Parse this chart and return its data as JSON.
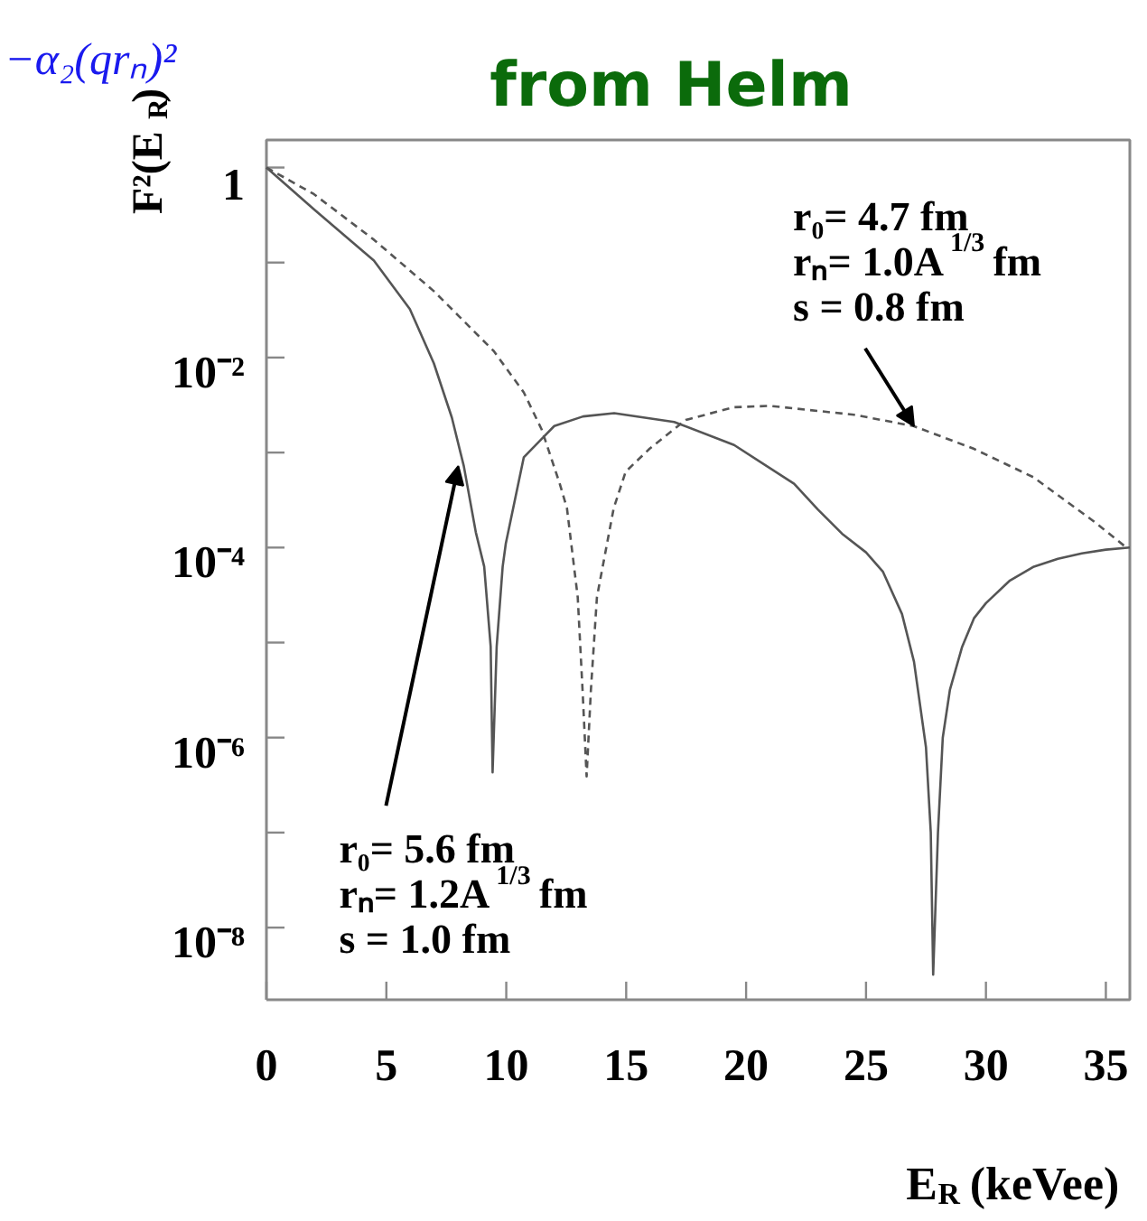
{
  "chart_data": {
    "type": "line",
    "title": "from Helm",
    "xlabel": "E$_{R}$ (keVee)",
    "ylabel": "F²(E$_{R}$)",
    "log": "y",
    "xlim": [
      0,
      36
    ],
    "xticks": [
      0,
      5,
      10,
      15,
      20,
      25,
      30,
      35
    ],
    "ylim": [
      1.74e-09,
      1.95
    ],
    "yticks": [
      {
        "value": 1,
        "label": "1"
      },
      {
        "value": 0.1,
        "label": null
      },
      {
        "value": 0.01,
        "label": "10⁻²"
      },
      {
        "value": 0.001,
        "label": null
      },
      {
        "value": 0.0001,
        "label": "10⁻⁴"
      },
      {
        "value": 1e-05,
        "label": null
      },
      {
        "value": 1e-06,
        "label": "10⁻⁶"
      },
      {
        "value": 1e-07,
        "label": null
      },
      {
        "value": 1e-08,
        "label": "10⁻⁸"
      }
    ],
    "grid": false,
    "series": [
      {
        "color": "#555555",
        "line_style": "solid",
        "x": [
          0,
          1.98,
          4.48,
          5.98,
          6.98,
          7.73,
          8.23,
          8.73,
          9.08,
          9.35,
          9.43,
          9.6,
          9.85,
          9.98,
          10.73,
          11.6,
          12.0,
          13.2,
          14.5,
          17,
          19.5,
          22,
          23,
          24,
          25,
          25.7,
          26.5,
          27,
          27.5,
          27.7,
          27.8,
          28.0,
          28.2,
          28.5,
          29,
          29.5,
          30,
          31,
          32,
          33,
          34,
          35,
          36
        ],
        "values": [
          1,
          0.363,
          0.105,
          0.0324,
          0.0087,
          0.00234,
          0.00072,
          0.000145,
          6.3e-05,
          9.1e-06,
          4.3e-07,
          9.1e-06,
          6.3e-05,
          0.00011,
          0.00089,
          0.0015,
          0.0019,
          0.0024,
          0.0026,
          0.0021,
          0.0012,
          0.00047,
          0.00025,
          0.00014,
          8.9e-05,
          5.6e-05,
          2e-05,
          6.3e-06,
          7.9e-07,
          1e-07,
          3.2e-09,
          1e-07,
          1e-06,
          3.2e-06,
          8.9e-06,
          1.8e-05,
          2.6e-05,
          4.5e-05,
          6.3e-05,
          7.6e-05,
          8.7e-05,
          9.5e-05,
          0.0001
        ]
      },
      {
        "color": "#555555",
        "line_style": "dashed",
        "x": [
          0,
          1.98,
          4.48,
          6.98,
          9.48,
          10.73,
          11.48,
          12.23,
          12.53,
          12.98,
          13.18,
          13.35,
          13.53,
          13.78,
          14.48,
          14.98,
          15.98,
          17.48,
          19.48,
          21,
          24.5,
          26.98,
          29.48,
          31.98,
          34.48,
          35.9
        ],
        "values": [
          1,
          0.525,
          0.174,
          0.05,
          0.0117,
          0.0043,
          0.00174,
          0.00047,
          0.00026,
          3e-05,
          3.2e-06,
          3.9e-07,
          3.2e-06,
          3e-05,
          0.00026,
          0.00063,
          0.0011,
          0.0022,
          0.003,
          0.0031,
          0.0025,
          0.0019,
          0.0011,
          0.00055,
          0.00019,
          9.8e-05
        ]
      }
    ],
    "annotations": [
      "−α₂(qrₙ)²",
      {
        "text": "r₀= 4.7 fm\nrₙ= 1.0A$^{1/3}$ fm\ns = 0.8 fm",
        "x": 27,
        "y": 0.0019
      },
      {
        "text": "r₀= 5.6 fm\nrₙ= 1.2A$^{1/3}$ fm\ns = 1.0 fm",
        "x": 8,
        "y": 0.00072
      }
    ]
  }
}
